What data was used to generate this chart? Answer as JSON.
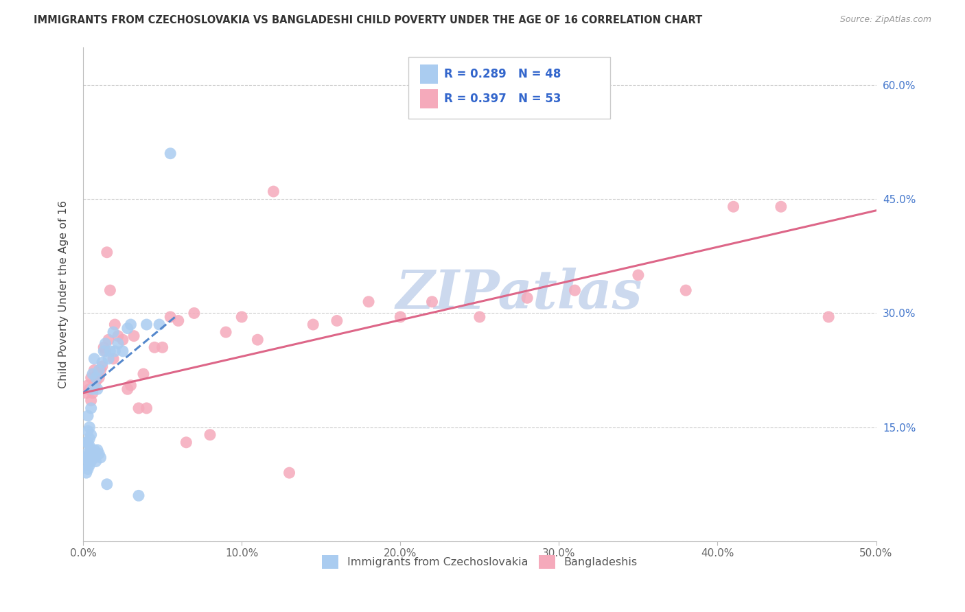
{
  "title": "IMMIGRANTS FROM CZECHOSLOVAKIA VS BANGLADESHI CHILD POVERTY UNDER THE AGE OF 16 CORRELATION CHART",
  "source": "Source: ZipAtlas.com",
  "ylabel": "Child Poverty Under the Age of 16",
  "xlim": [
    0,
    0.5
  ],
  "ylim": [
    0,
    0.65
  ],
  "xticks": [
    0.0,
    0.1,
    0.2,
    0.3,
    0.4,
    0.5
  ],
  "xtick_labels": [
    "0.0%",
    "10.0%",
    "20.0%",
    "30.0%",
    "40.0%",
    "50.0%"
  ],
  "yticks": [
    0.0,
    0.15,
    0.3,
    0.45,
    0.6
  ],
  "right_ytick_labels": [
    "",
    "15.0%",
    "30.0%",
    "45.0%",
    "60.0%"
  ],
  "series1_color": "#aaccf0",
  "series2_color": "#f5aabb",
  "trendline1_color": "#5588cc",
  "trendline2_color": "#dd6688",
  "watermark": "ZIPatlas",
  "watermark_color": "#ccd9ee",
  "legend_label1": "Immigrants from Czechoslovakia",
  "legend_label2": "Bangladeshis",
  "legend_R1": "R = 0.289",
  "legend_N1": "N = 48",
  "legend_R2": "R = 0.397",
  "legend_N2": "N = 53",
  "series1_x": [
    0.001,
    0.001,
    0.002,
    0.002,
    0.002,
    0.003,
    0.003,
    0.003,
    0.003,
    0.003,
    0.004,
    0.004,
    0.004,
    0.004,
    0.004,
    0.005,
    0.005,
    0.005,
    0.005,
    0.006,
    0.006,
    0.006,
    0.007,
    0.007,
    0.007,
    0.008,
    0.008,
    0.009,
    0.009,
    0.01,
    0.01,
    0.011,
    0.012,
    0.013,
    0.014,
    0.015,
    0.016,
    0.017,
    0.019,
    0.02,
    0.022,
    0.025,
    0.028,
    0.03,
    0.035,
    0.04,
    0.048,
    0.055
  ],
  "series1_y": [
    0.1,
    0.11,
    0.09,
    0.115,
    0.13,
    0.095,
    0.11,
    0.13,
    0.145,
    0.165,
    0.1,
    0.115,
    0.125,
    0.135,
    0.15,
    0.105,
    0.12,
    0.14,
    0.175,
    0.115,
    0.2,
    0.22,
    0.11,
    0.12,
    0.24,
    0.105,
    0.215,
    0.12,
    0.2,
    0.115,
    0.225,
    0.11,
    0.235,
    0.25,
    0.26,
    0.075,
    0.24,
    0.25,
    0.275,
    0.25,
    0.26,
    0.25,
    0.28,
    0.285,
    0.06,
    0.285,
    0.285,
    0.51
  ],
  "series2_x": [
    0.002,
    0.003,
    0.004,
    0.005,
    0.005,
    0.006,
    0.007,
    0.007,
    0.008,
    0.009,
    0.01,
    0.011,
    0.012,
    0.013,
    0.014,
    0.015,
    0.016,
    0.017,
    0.019,
    0.02,
    0.022,
    0.025,
    0.028,
    0.03,
    0.032,
    0.035,
    0.038,
    0.04,
    0.045,
    0.05,
    0.055,
    0.06,
    0.065,
    0.07,
    0.08,
    0.09,
    0.1,
    0.11,
    0.12,
    0.13,
    0.145,
    0.16,
    0.18,
    0.2,
    0.22,
    0.25,
    0.28,
    0.31,
    0.35,
    0.38,
    0.41,
    0.44,
    0.47
  ],
  "series2_y": [
    0.195,
    0.205,
    0.2,
    0.185,
    0.215,
    0.195,
    0.205,
    0.225,
    0.21,
    0.22,
    0.215,
    0.225,
    0.23,
    0.255,
    0.25,
    0.38,
    0.265,
    0.33,
    0.24,
    0.285,
    0.27,
    0.265,
    0.2,
    0.205,
    0.27,
    0.175,
    0.22,
    0.175,
    0.255,
    0.255,
    0.295,
    0.29,
    0.13,
    0.3,
    0.14,
    0.275,
    0.295,
    0.265,
    0.46,
    0.09,
    0.285,
    0.29,
    0.315,
    0.295,
    0.315,
    0.295,
    0.32,
    0.33,
    0.35,
    0.33,
    0.44,
    0.44,
    0.295
  ],
  "trendline1_x": [
    0.0,
    0.058
  ],
  "trendline1_y": [
    0.195,
    0.295
  ],
  "trendline2_x": [
    0.0,
    0.5
  ],
  "trendline2_y": [
    0.195,
    0.435
  ]
}
